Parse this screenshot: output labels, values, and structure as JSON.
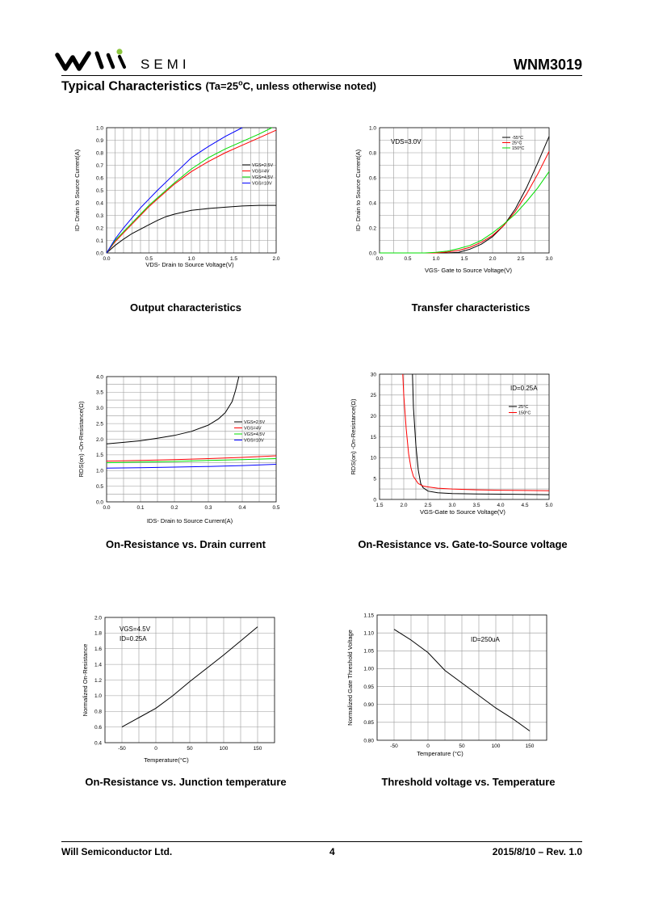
{
  "header": {
    "logo_text": "SEMI",
    "doc_id": "WNM3019",
    "section_title": "Typical Characteristics",
    "section_condition_prefix": "(Ta=25",
    "section_condition_sup": "o",
    "section_condition_suffix": "C, unless otherwise noted)"
  },
  "footer": {
    "company": "Will Semiconductor Ltd.",
    "page": "4",
    "date_rev": "2015/8/10 – Rev. 1.0"
  },
  "colors": {
    "black": "#000000",
    "red": "#ff0000",
    "green": "#00dd00",
    "blue": "#0000ff",
    "grid": "#9a9a9a",
    "logo_green": "#8cc63f"
  },
  "chart_data": [
    {
      "id": "output",
      "type": "line",
      "caption": "Output characteristics",
      "xlabel": "VDS- Drain to Source Voltage(V)",
      "ylabel": "ID- Drain to Source Current(A)",
      "xlim": [
        0,
        2.0
      ],
      "ylim": [
        0,
        1.0
      ],
      "xticks": [
        "0.0",
        "0.5",
        "1.0",
        "1.5",
        "2.0"
      ],
      "yticks": [
        "0.0",
        "0.1",
        "0.2",
        "0.3",
        "0.4",
        "0.5",
        "0.6",
        "0.7",
        "0.8",
        "0.9",
        "1.0"
      ],
      "legend_position": "right",
      "series": [
        {
          "name": "VGS=2.5V",
          "color": "#000000",
          "x": [
            0,
            0.1,
            0.2,
            0.3,
            0.4,
            0.5,
            0.6,
            0.7,
            0.8,
            1.0,
            1.2,
            1.4,
            1.6,
            1.8,
            2.0
          ],
          "y": [
            0,
            0.06,
            0.11,
            0.155,
            0.19,
            0.225,
            0.26,
            0.29,
            0.31,
            0.34,
            0.355,
            0.365,
            0.375,
            0.38,
            0.38
          ]
        },
        {
          "name": "VGS=4V",
          "color": "#ff0000",
          "x": [
            0,
            0.1,
            0.2,
            0.3,
            0.4,
            0.5,
            0.6,
            0.8,
            1.0,
            1.2,
            1.4,
            1.6,
            1.8,
            2.0
          ],
          "y": [
            0,
            0.09,
            0.16,
            0.23,
            0.3,
            0.37,
            0.43,
            0.55,
            0.65,
            0.73,
            0.8,
            0.86,
            0.92,
            0.98
          ]
        },
        {
          "name": "VGS=4.5V",
          "color": "#00dd00",
          "x": [
            0,
            0.1,
            0.2,
            0.3,
            0.4,
            0.5,
            0.6,
            0.8,
            1.0,
            1.2,
            1.4,
            1.6,
            1.8,
            1.95
          ],
          "y": [
            0,
            0.1,
            0.17,
            0.24,
            0.31,
            0.38,
            0.44,
            0.56,
            0.67,
            0.76,
            0.83,
            0.89,
            0.95,
            1.0
          ]
        },
        {
          "name": "VGS=10V",
          "color": "#0000ff",
          "x": [
            0,
            0.1,
            0.2,
            0.3,
            0.4,
            0.5,
            0.6,
            0.8,
            1.0,
            1.2,
            1.4,
            1.6
          ],
          "y": [
            0,
            0.11,
            0.2,
            0.28,
            0.36,
            0.43,
            0.5,
            0.63,
            0.76,
            0.85,
            0.93,
            1.0
          ]
        }
      ]
    },
    {
      "id": "transfer",
      "type": "line",
      "caption": "Transfer characteristics",
      "xlabel": "VGS- Gate to Source Voltage(V)",
      "ylabel": "ID- Drain to Source Current(A)",
      "annotation": "VDS=3.0V",
      "xlim": [
        0,
        3.0
      ],
      "ylim": [
        0,
        1.0
      ],
      "xticks": [
        "0.0",
        "0.5",
        "1.0",
        "1.5",
        "2.0",
        "2.5",
        "3.0"
      ],
      "yticks": [
        "0.0",
        "0.2",
        "0.4",
        "0.6",
        "0.8",
        "1.0"
      ],
      "legend_position": "top-right",
      "series": [
        {
          "name": "-55°C",
          "color": "#000000",
          "x": [
            0,
            1.2,
            1.4,
            1.6,
            1.8,
            2.0,
            2.2,
            2.4,
            2.6,
            2.8,
            3.0
          ],
          "y": [
            0,
            0,
            0.005,
            0.03,
            0.07,
            0.13,
            0.22,
            0.35,
            0.52,
            0.72,
            0.93
          ]
        },
        {
          "name": "25°C",
          "color": "#ff0000",
          "x": [
            0,
            1.0,
            1.2,
            1.4,
            1.6,
            1.8,
            2.0,
            2.2,
            2.4,
            2.6,
            2.8,
            3.0
          ],
          "y": [
            0,
            0,
            0.007,
            0.02,
            0.045,
            0.085,
            0.14,
            0.22,
            0.33,
            0.47,
            0.63,
            0.81
          ]
        },
        {
          "name": "150°C",
          "color": "#00dd00",
          "x": [
            0,
            0.8,
            1.0,
            1.2,
            1.4,
            1.6,
            1.8,
            2.0,
            2.2,
            2.4,
            2.6,
            2.8,
            3.0
          ],
          "y": [
            0,
            0,
            0.005,
            0.015,
            0.035,
            0.06,
            0.1,
            0.16,
            0.23,
            0.31,
            0.41,
            0.52,
            0.65
          ]
        }
      ]
    },
    {
      "id": "ron_id",
      "type": "line",
      "caption": "On-Resistance vs. Drain current",
      "xlabel": "IDS- Drain to Source Current(A)",
      "ylabel": "RDS(on) -On-Resistance(Ω)",
      "xlim": [
        0,
        0.5
      ],
      "ylim": [
        0,
        4.0
      ],
      "xticks": [
        "0.0",
        "0.1",
        "0.2",
        "0.3",
        "0.4",
        "0.5"
      ],
      "yticks": [
        "0.0",
        "0.5",
        "1.0",
        "1.5",
        "2.0",
        "2.5",
        "3.0",
        "3.5",
        "4.0"
      ],
      "legend_position": "right",
      "series": [
        {
          "name": "VGS=2.5V",
          "color": "#000000",
          "x": [
            0,
            0.05,
            0.1,
            0.15,
            0.2,
            0.25,
            0.3,
            0.33,
            0.35,
            0.37,
            0.38,
            0.39
          ],
          "y": [
            1.85,
            1.9,
            1.95,
            2.03,
            2.12,
            2.25,
            2.45,
            2.65,
            2.85,
            3.2,
            3.55,
            4.0
          ]
        },
        {
          "name": "VGS=4V",
          "color": "#ff0000",
          "x": [
            0,
            0.1,
            0.2,
            0.3,
            0.4,
            0.5
          ],
          "y": [
            1.3,
            1.32,
            1.35,
            1.38,
            1.42,
            1.47
          ]
        },
        {
          "name": "VGS=4.5V",
          "color": "#00dd00",
          "x": [
            0,
            0.1,
            0.2,
            0.3,
            0.4,
            0.5
          ],
          "y": [
            1.25,
            1.27,
            1.29,
            1.32,
            1.35,
            1.38
          ]
        },
        {
          "name": "VGS=10V",
          "color": "#0000ff",
          "x": [
            0,
            0.1,
            0.2,
            0.3,
            0.4,
            0.5
          ],
          "y": [
            1.08,
            1.09,
            1.11,
            1.13,
            1.16,
            1.2
          ]
        }
      ]
    },
    {
      "id": "ron_vgs",
      "type": "line",
      "caption": "On-Resistance vs. Gate-to-Source voltage",
      "xlabel": "VGS-Gate to Source Voltage(V)",
      "ylabel": "RDS(on) -On-Resistance(Ω)",
      "annotation": "ID=0.25A",
      "xlim": [
        1.5,
        5.0
      ],
      "ylim": [
        0,
        30
      ],
      "xticks": [
        "1.5",
        "2.0",
        "2.5",
        "3.0",
        "3.5",
        "4.0",
        "4.5",
        "5.0"
      ],
      "yticks": [
        "0",
        "5",
        "10",
        "15",
        "20",
        "25",
        "30"
      ],
      "legend_position": "right",
      "series": [
        {
          "name": "25°C",
          "color": "#000000",
          "x": [
            2.18,
            2.2,
            2.25,
            2.3,
            2.35,
            2.4,
            2.5,
            2.7,
            3.0,
            3.5,
            4.0,
            4.5,
            5.0
          ],
          "y": [
            30,
            22,
            13,
            7,
            3.8,
            2.8,
            2.0,
            1.6,
            1.4,
            1.3,
            1.25,
            1.2,
            1.15
          ]
        },
        {
          "name": "150°C",
          "color": "#ff0000",
          "x": [
            1.98,
            2.0,
            2.05,
            2.1,
            2.15,
            2.2,
            2.3,
            2.4,
            2.5,
            2.7,
            3.0,
            3.5,
            4.0,
            4.5,
            5.0
          ],
          "y": [
            30,
            25,
            17,
            11,
            7.5,
            5.5,
            3.8,
            3.2,
            3.0,
            2.7,
            2.5,
            2.3,
            2.2,
            2.15,
            2.1
          ]
        }
      ]
    },
    {
      "id": "ron_temp",
      "type": "line",
      "caption": "On-Resistance vs. Junction temperature",
      "xlabel": "Temperature(°C)",
      "ylabel": "Normalized On-Resistance",
      "annotation_lines": [
        "VGS=4.5V",
        "ID=0.25A"
      ],
      "xlim": [
        -75,
        175
      ],
      "ylim": [
        0.4,
        2.0
      ],
      "xticks": [
        "-50",
        "0",
        "50",
        "100",
        "150"
      ],
      "yticks": [
        "0.4",
        "0.6",
        "0.8",
        "1.0",
        "1.2",
        "1.4",
        "1.6",
        "1.8",
        "2.0"
      ],
      "series": [
        {
          "name": "",
          "color": "#000000",
          "x": [
            -50,
            -25,
            0,
            25,
            50,
            75,
            100,
            125,
            150
          ],
          "y": [
            0.6,
            0.72,
            0.84,
            1.0,
            1.18,
            1.35,
            1.52,
            1.7,
            1.88
          ]
        }
      ]
    },
    {
      "id": "vth_temp",
      "type": "line",
      "caption": "Threshold voltage vs. Temperature",
      "xlabel": "Temperature (°C)",
      "ylabel": "Normalized Gate Threshold Voltage",
      "annotation": "ID=250uA",
      "xlim": [
        -75,
        175
      ],
      "ylim": [
        0.8,
        1.15
      ],
      "xticks": [
        "-50",
        "0",
        "50",
        "100",
        "150"
      ],
      "yticks": [
        "0.80",
        "0.85",
        "0.90",
        "0.95",
        "1.00",
        "1.05",
        "1.10",
        "1.15"
      ],
      "series": [
        {
          "name": "",
          "color": "#000000",
          "x": [
            -50,
            -25,
            0,
            25,
            50,
            75,
            100,
            125,
            150
          ],
          "y": [
            1.11,
            1.08,
            1.045,
            0.995,
            0.96,
            0.925,
            0.89,
            0.86,
            0.826
          ]
        }
      ]
    }
  ]
}
